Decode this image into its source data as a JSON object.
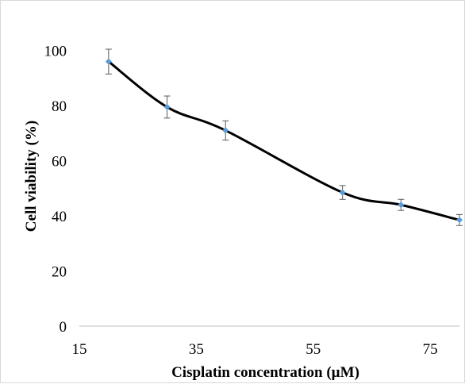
{
  "chart_data": {
    "type": "line",
    "title": "",
    "xlabel": "Cisplatin concentration (µM)",
    "ylabel": "Cell viability (%)",
    "xlim": [
      15,
      80
    ],
    "ylim": [
      0,
      110
    ],
    "xticks": [
      15,
      35,
      55,
      75
    ],
    "yticks": [
      0,
      20,
      40,
      60,
      80,
      100
    ],
    "grid": false,
    "legend": "none",
    "smooth": true,
    "series": [
      {
        "x": [
          20,
          30,
          40,
          60,
          70,
          80
        ],
        "y": [
          96,
          79.5,
          71,
          48.5,
          44,
          38.5
        ],
        "error": [
          4.5,
          4,
          3.5,
          2.5,
          2,
          2
        ],
        "line_color": "#000000",
        "marker_color": "#5b9bd5",
        "errorbar_color": "#595959"
      }
    ]
  }
}
